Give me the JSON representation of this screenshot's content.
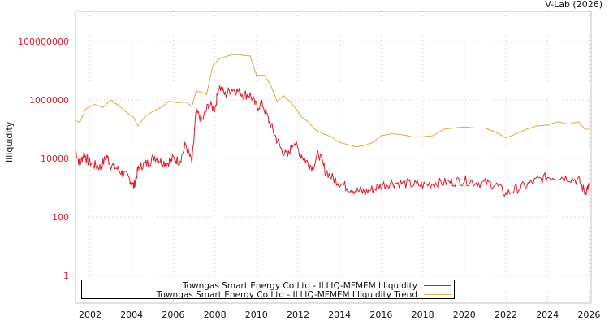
{
  "header": {
    "credit": "V-Lab (2026)"
  },
  "chart_data": {
    "type": "line",
    "title": "",
    "xlabel": "",
    "ylabel": "Illiquidity",
    "yscale": "log",
    "ylim": [
      0.2,
      1000000000
    ],
    "xlim": [
      2001.3,
      2026.1
    ],
    "y_ticks": [
      "1",
      "100",
      "10000",
      "1000000",
      "100000000"
    ],
    "x_ticks": [
      "2002",
      "2004",
      "2006",
      "2008",
      "2010",
      "2012",
      "2014",
      "2016",
      "2018",
      "2020",
      "2022",
      "2024",
      "2026"
    ],
    "grid": true,
    "legend_position": "bottom-left inside",
    "series": [
      {
        "name": "Towngas Smart Energy Co Ltd - ILLIQ-MFMEM Illiquidity",
        "color": "#d62030",
        "x": [
          2001.3,
          2001.5,
          2001.7,
          2001.9,
          2002.2,
          2002.5,
          2002.8,
          2003.0,
          2003.3,
          2003.6,
          2003.9,
          2004.1,
          2004.3,
          2004.5,
          2004.8,
          2005.1,
          2005.4,
          2005.7,
          2006.0,
          2006.3,
          2006.6,
          2006.9,
          2007.1,
          2007.4,
          2007.7,
          2008.0,
          2008.2,
          2008.5,
          2008.8,
          2009.1,
          2009.4,
          2009.7,
          2010.0,
          2010.3,
          2010.6,
          2010.9,
          2011.2,
          2011.5,
          2011.8,
          2012.1,
          2012.4,
          2012.7,
          2013.0,
          2013.3,
          2013.7,
          2014.0,
          2014.4,
          2014.8,
          2015.2,
          2015.6,
          2016.0,
          2016.5,
          2017.0,
          2017.5,
          2018.0,
          2018.5,
          2019.0,
          2019.5,
          2020.0,
          2020.5,
          2021.0,
          2021.5,
          2022.0,
          2022.5,
          2023.0,
          2023.5,
          2024.0,
          2024.5,
          2025.0,
          2025.5,
          2025.8,
          2026.0
        ],
        "values": [
          20000,
          6000,
          15000,
          8000,
          6000,
          5000,
          12000,
          6000,
          4500,
          3000,
          2000,
          1100,
          4000,
          6000,
          7000,
          12000,
          8000,
          7000,
          10000,
          8000,
          30000,
          7000,
          400000,
          200000,
          700000,
          500000,
          3000000,
          1500000,
          2500000,
          2000000,
          1500000,
          1500000,
          600000,
          700000,
          200000,
          60000,
          20000,
          12000,
          40000,
          15000,
          8000,
          5000,
          15000,
          4000,
          2000,
          1500,
          1000,
          800,
          700,
          900,
          1200,
          1500,
          1400,
          1300,
          1200,
          1400,
          1500,
          1600,
          1800,
          1500,
          1400,
          1300,
          600,
          900,
          1200,
          1800,
          2300,
          2400,
          2200,
          1800,
          700,
          1200
        ]
      },
      {
        "name": "Towngas Smart Energy Co Ltd - ILLIQ-MFMEM Illiquidity Trend",
        "color": "#d4ac48",
        "x": [
          2001.3,
          2001.5,
          2001.8,
          2002.2,
          2002.6,
          2003.0,
          2003.3,
          2003.7,
          2004.1,
          2004.3,
          2004.6,
          2005.0,
          2005.4,
          2005.8,
          2006.2,
          2006.6,
          2006.9,
          2007.1,
          2007.4,
          2007.6,
          2007.9,
          2008.2,
          2008.5,
          2008.8,
          2009.1,
          2009.4,
          2009.7,
          2010.0,
          2010.4,
          2010.7,
          2011.0,
          2011.3,
          2011.6,
          2011.9,
          2012.2,
          2012.5,
          2012.8,
          2013.2,
          2013.6,
          2014.0,
          2014.4,
          2014.8,
          2015.2,
          2015.6,
          2016.0,
          2016.5,
          2017.0,
          2017.5,
          2018.0,
          2018.5,
          2019.0,
          2019.5,
          2020.0,
          2020.5,
          2021.0,
          2021.5,
          2022.0,
          2022.5,
          2023.0,
          2023.5,
          2024.0,
          2024.5,
          2025.0,
          2025.5,
          2025.8,
          2026.0
        ],
        "values": [
          200000,
          170000,
          500000,
          700000,
          550000,
          1000000,
          700000,
          400000,
          250000,
          130000,
          250000,
          400000,
          550000,
          900000,
          800000,
          850000,
          600000,
          2000000,
          1800000,
          1500000,
          15000000,
          25000000,
          30000000,
          35000000,
          36000000,
          33000000,
          32000000,
          7000000,
          7000000,
          3000000,
          900000,
          1400000,
          900000,
          500000,
          250000,
          180000,
          100000,
          70000,
          55000,
          35000,
          30000,
          25000,
          28000,
          35000,
          60000,
          70000,
          65000,
          55000,
          55000,
          60000,
          100000,
          110000,
          120000,
          110000,
          110000,
          80000,
          50000,
          70000,
          100000,
          130000,
          140000,
          180000,
          150000,
          180000,
          100000,
          100000
        ]
      }
    ]
  }
}
